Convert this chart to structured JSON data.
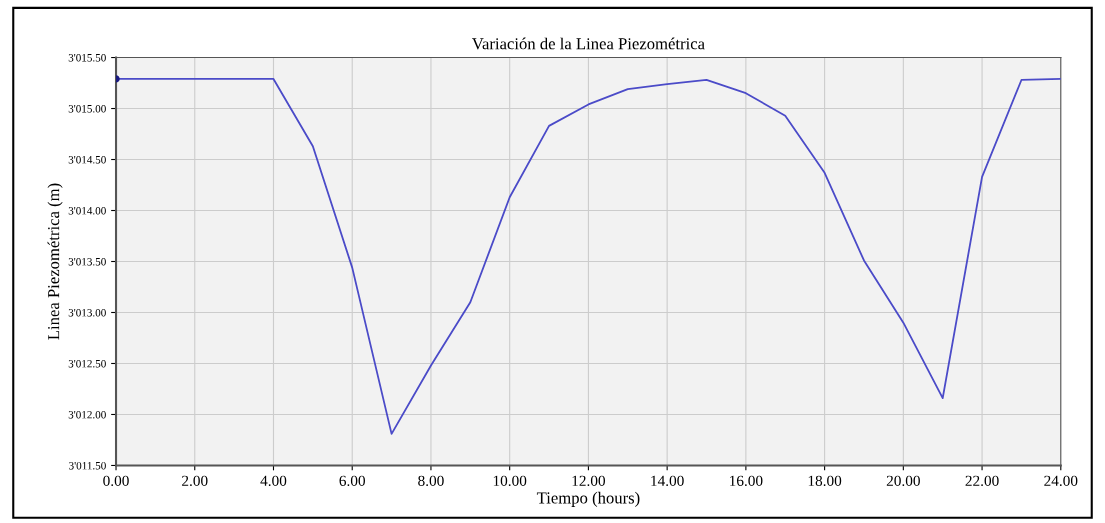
{
  "chart_data": {
    "type": "line",
    "title": "Variación de la Linea Piezométrica",
    "xlabel": "Tiempo (hours)",
    "ylabel": "Linea Piezométrica (m)",
    "x": [
      0,
      1,
      2,
      3,
      4,
      5,
      6,
      7,
      8,
      9,
      10,
      11,
      12,
      13,
      14,
      15,
      16,
      17,
      18,
      19,
      20,
      21,
      22,
      23,
      24
    ],
    "series": [
      {
        "color": "#4b4bc8",
        "values": [
          3015.29,
          3015.29,
          3015.29,
          3015.29,
          3015.29,
          3014.63,
          3013.44,
          3011.81,
          3012.48,
          3013.1,
          3014.13,
          3014.83,
          3015.04,
          3015.19,
          3015.24,
          3015.28,
          3015.15,
          3014.93,
          3014.37,
          3013.51,
          3012.9,
          3012.16,
          3014.33,
          3015.28,
          3015.29
        ]
      },
      {
        "type": "scatter",
        "color": "#1a1a80",
        "x": [
          0
        ],
        "values": [
          3015.29
        ]
      }
    ],
    "xlim": [
      0,
      24
    ],
    "xticks": [
      {
        "value": 0,
        "label": "0.00"
      },
      {
        "value": 2,
        "label": "2.00"
      },
      {
        "value": 4,
        "label": "4.00"
      },
      {
        "value": 6,
        "label": "6.00"
      },
      {
        "value": 8,
        "label": "8.00"
      },
      {
        "value": 10,
        "label": "10.00"
      },
      {
        "value": 12,
        "label": "12.00"
      },
      {
        "value": 14,
        "label": "14.00"
      },
      {
        "value": 16,
        "label": "16.00"
      },
      {
        "value": 18,
        "label": "18.00"
      },
      {
        "value": 20,
        "label": "20.00"
      },
      {
        "value": 22,
        "label": "22.00"
      },
      {
        "value": 24,
        "label": "24.00"
      }
    ],
    "ylim": [
      3011.5,
      3015.5
    ],
    "yticks": [
      {
        "value": 3011.5,
        "label": "3'011.50"
      },
      {
        "value": 3012,
        "label": "3'012.00"
      },
      {
        "value": 3012.5,
        "label": "3'012.50"
      },
      {
        "value": 3013,
        "label": "3'013.00"
      },
      {
        "value": 3013.5,
        "label": "3'013.50"
      },
      {
        "value": 3014,
        "label": "3'014.00"
      },
      {
        "value": 3014.5,
        "label": "3'014.50"
      },
      {
        "value": 3015,
        "label": "3'015.00"
      },
      {
        "value": 3015.5,
        "label": "3'015.50"
      }
    ],
    "grid": true
  }
}
